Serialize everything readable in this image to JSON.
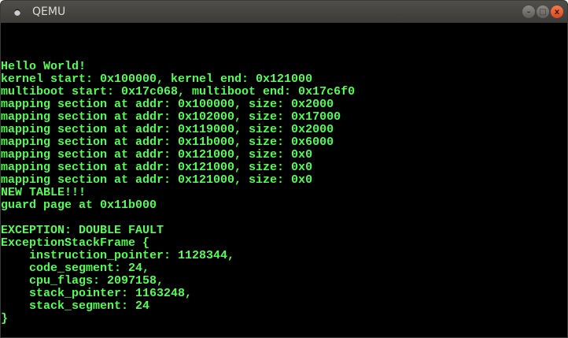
{
  "window": {
    "title": "QEMU",
    "minimize_label": "–",
    "maximize_label": "□",
    "close_label": "x"
  },
  "colors": {
    "text": "#54fc54",
    "background": "#000000"
  },
  "console": {
    "lines": [
      "Hello World!",
      "kernel start: 0x100000, kernel end: 0x121000",
      "multiboot start: 0x17c068, multiboot end: 0x17c6f0",
      "mapping section at addr: 0x100000, size: 0x2000",
      "mapping section at addr: 0x102000, size: 0x17000",
      "mapping section at addr: 0x119000, size: 0x2000",
      "mapping section at addr: 0x11b000, size: 0x6000",
      "mapping section at addr: 0x121000, size: 0x0",
      "mapping section at addr: 0x121000, size: 0x0",
      "mapping section at addr: 0x121000, size: 0x0",
      "NEW TABLE!!!",
      "guard page at 0x11b000",
      "",
      "EXCEPTION: DOUBLE FAULT",
      "ExceptionStackFrame {",
      "    instruction_pointer: 1128344,",
      "    code_segment: 24,",
      "    cpu_flags: 2097158,",
      "    stack_pointer: 1163248,",
      "    stack_segment: 24",
      "}"
    ]
  }
}
